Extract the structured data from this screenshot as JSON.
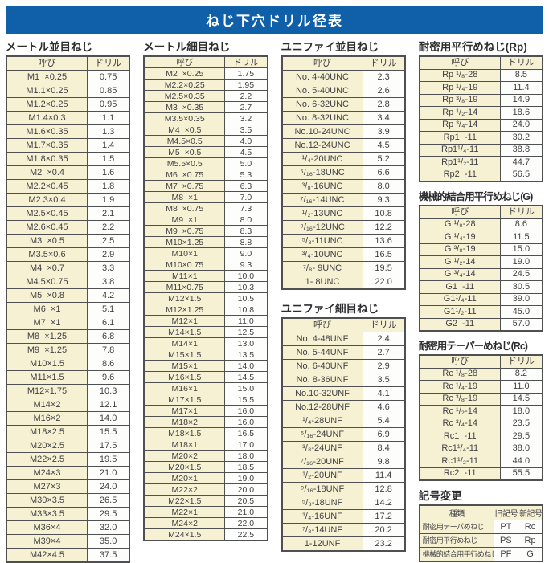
{
  "page_title": "ねじ下穴ドリル径表",
  "colors": {
    "header_bg": "#0f5fa9",
    "cell_cream": "#f6f1d3",
    "border": "#4f5052"
  },
  "sections": {
    "metric_coarse": {
      "title": "メートル並目ねじ",
      "headers": [
        "呼び",
        "ドリル"
      ],
      "rows": [
        [
          "M1  ×0.25",
          "0.75"
        ],
        [
          "M1.1×0.25",
          "0.85"
        ],
        [
          "M1.2×0.25",
          "0.95"
        ],
        [
          "M1.4×0.3",
          "1.1"
        ],
        [
          "M1.6×0.35",
          "1.3"
        ],
        [
          "M1.7×0.35",
          "1.4"
        ],
        [
          "M1.8×0.35",
          "1.5"
        ],
        [
          "M2  ×0.4",
          "1.6"
        ],
        [
          "M2.2×0.45",
          "1.8"
        ],
        [
          "M2.3×0.4",
          "1.9"
        ],
        [
          "M2.5×0.45",
          "2.1"
        ],
        [
          "M2.6×0.45",
          "2.2"
        ],
        [
          "M3  ×0.5",
          "2.5"
        ],
        [
          "M3.5×0.6",
          "2.9"
        ],
        [
          "M4  ×0.7",
          "3.3"
        ],
        [
          "M4.5×0.75",
          "3.8"
        ],
        [
          "M5  ×0.8",
          "4.2"
        ],
        [
          "M6  ×1",
          "5.1"
        ],
        [
          "M7  ×1",
          "6.1"
        ],
        [
          "M8  ×1.25",
          "6.8"
        ],
        [
          "M9  ×1.25",
          "7.8"
        ],
        [
          "M10×1.5",
          "8.6"
        ],
        [
          "M11×1.5",
          "9.6"
        ],
        [
          "M12×1.75",
          "10.3"
        ],
        [
          "M14×2",
          "12.1"
        ],
        [
          "M16×2",
          "14.0"
        ],
        [
          "M18×2.5",
          "15.5"
        ],
        [
          "M20×2.5",
          "17.5"
        ],
        [
          "M22×2.5",
          "19.5"
        ],
        [
          "M24×3",
          "21.0"
        ],
        [
          "M27×3",
          "24.0"
        ],
        [
          "M30×3.5",
          "26.5"
        ],
        [
          "M33×3.5",
          "29.5"
        ],
        [
          "M36×4",
          "32.0"
        ],
        [
          "M39×4",
          "35.0"
        ],
        [
          "M42×4.5",
          "37.5"
        ]
      ]
    },
    "metric_fine": {
      "title": "メートル細目ねじ",
      "headers": [
        "呼び",
        "ドリル"
      ],
      "rows": [
        [
          "M2  ×0.25",
          "1.75"
        ],
        [
          "M2.2×0.25",
          "1.95"
        ],
        [
          "M2.5×0.35",
          "2.2"
        ],
        [
          "M3  ×0.35",
          "2.7"
        ],
        [
          "M3.5×0.35",
          "3.2"
        ],
        [
          "M4  ×0.5",
          "3.5"
        ],
        [
          "M4.5×0.5",
          "4.0"
        ],
        [
          "M5  ×0.5",
          "4.5"
        ],
        [
          "M5.5×0.5",
          "5.0"
        ],
        [
          "M6  ×0.75",
          "5.3"
        ],
        [
          "M7  ×0.75",
          "6.3"
        ],
        [
          "M8  ×1",
          "7.0"
        ],
        [
          "M8  ×0.75",
          "7.3"
        ],
        [
          "M9  ×1",
          "8.0"
        ],
        [
          "M9  ×0.75",
          "8.3"
        ],
        [
          "M10×1.25",
          "8.8"
        ],
        [
          "M10×1",
          "9.0"
        ],
        [
          "M10×0.75",
          "9.3"
        ],
        [
          "M11×1",
          "10.0"
        ],
        [
          "M11×0.75",
          "10.3"
        ],
        [
          "M12×1.5",
          "10.5"
        ],
        [
          "M12×1.25",
          "10.8"
        ],
        [
          "M12×1",
          "11.0"
        ],
        [
          "M14×1.5",
          "12.5"
        ],
        [
          "M14×1",
          "13.0"
        ],
        [
          "M15×1.5",
          "13.5"
        ],
        [
          "M15×1",
          "14.0"
        ],
        [
          "M16×1.5",
          "14.5"
        ],
        [
          "M16×1",
          "15.0"
        ],
        [
          "M17×1.5",
          "15.5"
        ],
        [
          "M17×1",
          "16.0"
        ],
        [
          "M18×2",
          "16.0"
        ],
        [
          "M18×1.5",
          "16.5"
        ],
        [
          "M18×1",
          "17.0"
        ],
        [
          "M20×2",
          "18.0"
        ],
        [
          "M20×1.5",
          "18.5"
        ],
        [
          "M20×1",
          "19.0"
        ],
        [
          "M22×2",
          "20.0"
        ],
        [
          "M22×1.5",
          "20.5"
        ],
        [
          "M22×1",
          "21.0"
        ],
        [
          "M24×2",
          "22.0"
        ],
        [
          "M24×1.5",
          "22.5"
        ]
      ]
    },
    "unified_coarse": {
      "title": "ユニファイ並目ねじ",
      "headers": [
        "呼び",
        "ドリル"
      ],
      "rows": [
        [
          "No. 4-40UNC",
          "2.3"
        ],
        [
          "No. 5-40UNC",
          "2.6"
        ],
        [
          "No. 6-32UNC",
          "2.8"
        ],
        [
          "No. 8-32UNC",
          "3.4"
        ],
        [
          "No.10-24UNC",
          "3.9"
        ],
        [
          "No.12-24UNC",
          "4.5"
        ],
        [
          "¹/₄-20UNC",
          "5.2"
        ],
        [
          "⁵/₁₆-18UNC",
          "6.6"
        ],
        [
          "³/₈-16UNC",
          "8.0"
        ],
        [
          "⁷/₁₆-14UNC",
          "9.3"
        ],
        [
          "¹/₂-13UNC",
          "10.8"
        ],
        [
          "⁹/₁₆-12UNC",
          "12.2"
        ],
        [
          "⁵/₈-11UNC",
          "13.6"
        ],
        [
          "³/₄-10UNC",
          "16.5"
        ],
        [
          "⁷/₈- 9UNC",
          "19.5"
        ],
        [
          "1- 8UNC",
          "22.0"
        ]
      ]
    },
    "unified_fine": {
      "title": "ユニファイ細目ねじ",
      "headers": [
        "呼び",
        "ドリル"
      ],
      "rows": [
        [
          "No. 4-48UNF",
          "2.4"
        ],
        [
          "No. 5-44UNF",
          "2.7"
        ],
        [
          "No. 6-40UNF",
          "2.9"
        ],
        [
          "No. 8-36UNF",
          "3.5"
        ],
        [
          "No.10-32UNF",
          "4.1"
        ],
        [
          "No.12-28UNF",
          "4.6"
        ],
        [
          "¹/₄-28UNF",
          "5.4"
        ],
        [
          "⁵/₁₆-24UNF",
          "6.9"
        ],
        [
          "³/₈-24UNF",
          "8.4"
        ],
        [
          "⁷/₁₆-20UNF",
          "9.8"
        ],
        [
          "¹/₂-20UNF",
          "11.4"
        ],
        [
          "⁹/₁₆-18UNF",
          "12.8"
        ],
        [
          "⁵/₈-18UNF",
          "14.2"
        ],
        [
          "³/₄-16UNF",
          "17.2"
        ],
        [
          "⁷/₈-14UNF",
          "20.2"
        ],
        [
          "1-12UNF",
          "23.2"
        ]
      ]
    },
    "rp": {
      "title": "耐密用平行めねじ(Rp)",
      "headers": [
        "呼び",
        "ドリル"
      ],
      "rows": [
        [
          "Rp ¹/₈-28",
          "8.5"
        ],
        [
          "Rp ¹/₄-19",
          "11.4"
        ],
        [
          "Rp ³/₈-19",
          "14.9"
        ],
        [
          "Rp ¹/₂-14",
          "18.6"
        ],
        [
          "Rp ³/₄-14",
          "24.0"
        ],
        [
          "Rp1  -11",
          "30.2"
        ],
        [
          "Rp1¹/₄-11",
          "38.8"
        ],
        [
          "Rp1¹/₂-11",
          "44.7"
        ],
        [
          "Rp2  -11",
          "56.5"
        ]
      ]
    },
    "g": {
      "title": "機械的結合用平行めねじ(G)",
      "headers": [
        "呼び",
        "ドリル"
      ],
      "rows": [
        [
          "G ¹/₈-28",
          "8.6"
        ],
        [
          "G ¹/₄-19",
          "11.5"
        ],
        [
          "G ³/₈-19",
          "15.0"
        ],
        [
          "G ¹/₂-14",
          "19.0"
        ],
        [
          "G ³/₄-14",
          "24.5"
        ],
        [
          "G1  -11",
          "30.5"
        ],
        [
          "G1¹/₄-11",
          "39.0"
        ],
        [
          "G1¹/₂-11",
          "45.0"
        ],
        [
          "G2  -11",
          "57.0"
        ]
      ]
    },
    "rc": {
      "title": "耐密用テーパーめねじ(Rc)",
      "headers": [
        "呼び",
        "ドリル"
      ],
      "rows": [
        [
          "Rc ¹/₈-28",
          "8.2"
        ],
        [
          "Rc ¹/₄-19",
          "11.0"
        ],
        [
          "Rc ³/₈-19",
          "14.5"
        ],
        [
          "Rc ¹/₂-14",
          "18.0"
        ],
        [
          "Rc ³/₄-14",
          "23.5"
        ],
        [
          "Rc1  -11",
          "29.5"
        ],
        [
          "Rc1¹/₄-11",
          "38.0"
        ],
        [
          "Rc1¹/₂-11",
          "44.0"
        ],
        [
          "Rc2  -11",
          "55.5"
        ]
      ]
    },
    "symbol_change": {
      "title": "記号変更",
      "headers": [
        "種類",
        "旧記号",
        "新記号"
      ],
      "rows": [
        [
          "耐密用テーパめねじ",
          "PT",
          "Rc"
        ],
        [
          "耐密用平行めねじ",
          "PS",
          "Rp"
        ],
        [
          "機械的結合用平行めねじ",
          "PF",
          "G"
        ]
      ]
    }
  }
}
